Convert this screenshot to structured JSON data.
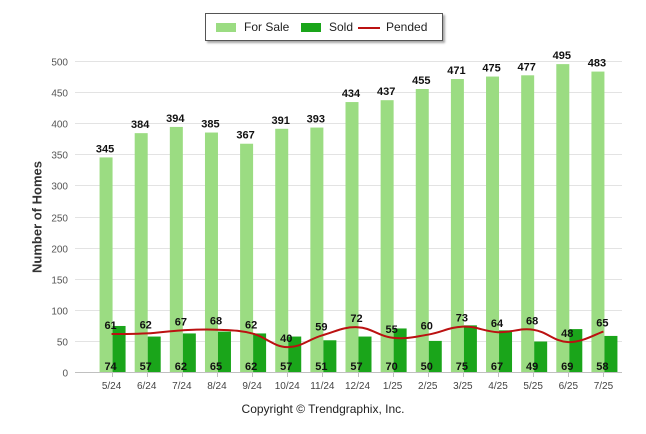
{
  "chart_data": {
    "type": "bar",
    "categories": [
      "5/24",
      "6/24",
      "7/24",
      "8/24",
      "9/24",
      "10/24",
      "11/24",
      "12/24",
      "1/25",
      "2/25",
      "3/25",
      "4/25",
      "5/25",
      "6/25",
      "7/25"
    ],
    "series": [
      {
        "name": "For Sale",
        "type": "bar",
        "color": "#9bdc82",
        "values": [
          345,
          384,
          394,
          385,
          367,
          391,
          393,
          434,
          437,
          455,
          471,
          475,
          477,
          495,
          483
        ]
      },
      {
        "name": "Sold",
        "type": "bar",
        "color": "#1aa51a",
        "values": [
          74,
          57,
          62,
          65,
          62,
          57,
          51,
          57,
          70,
          50,
          75,
          67,
          49,
          69,
          58
        ]
      },
      {
        "name": "Pended",
        "type": "line",
        "color": "#bb1111",
        "values": [
          61,
          62,
          67,
          68,
          62,
          40,
          59,
          72,
          55,
          60,
          73,
          64,
          68,
          48,
          65
        ]
      }
    ],
    "xlabel": "",
    "ylabel": "Number of Homes",
    "ylim": [
      0,
      500
    ],
    "yticks": [
      0,
      50,
      100,
      150,
      200,
      250,
      300,
      350,
      400,
      450,
      500
    ],
    "grid": true,
    "legend": "top-center"
  },
  "copyright": "Copyright © Trendgraphix, Inc."
}
